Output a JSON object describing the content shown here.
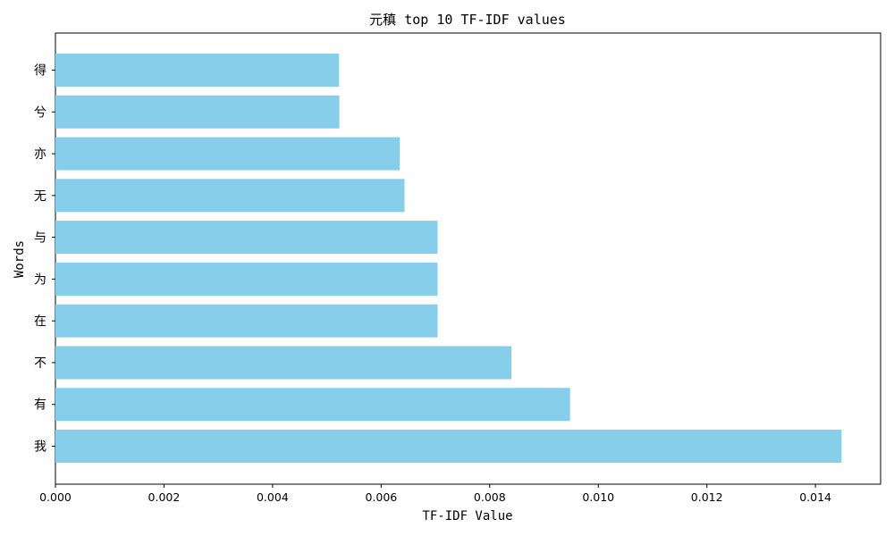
{
  "chart_data": {
    "type": "bar",
    "orientation": "horizontal",
    "title": "元稹 top 10 TF-IDF values",
    "xlabel": "TF-IDF Value",
    "ylabel": "Words",
    "categories": [
      "我",
      "有",
      "不",
      "在",
      "为",
      "与",
      "无",
      "亦",
      "兮",
      "得"
    ],
    "values": [
      0.01448,
      0.00948,
      0.0084,
      0.00704,
      0.00704,
      0.00704,
      0.00643,
      0.00634,
      0.00523,
      0.00522
    ],
    "xlim": [
      0,
      0.0152
    ],
    "xticks": [
      "0.000",
      "0.002",
      "0.004",
      "0.006",
      "0.008",
      "0.010",
      "0.012",
      "0.014"
    ],
    "bar_color": "#87ceeb",
    "grid": false,
    "legend": "none"
  }
}
